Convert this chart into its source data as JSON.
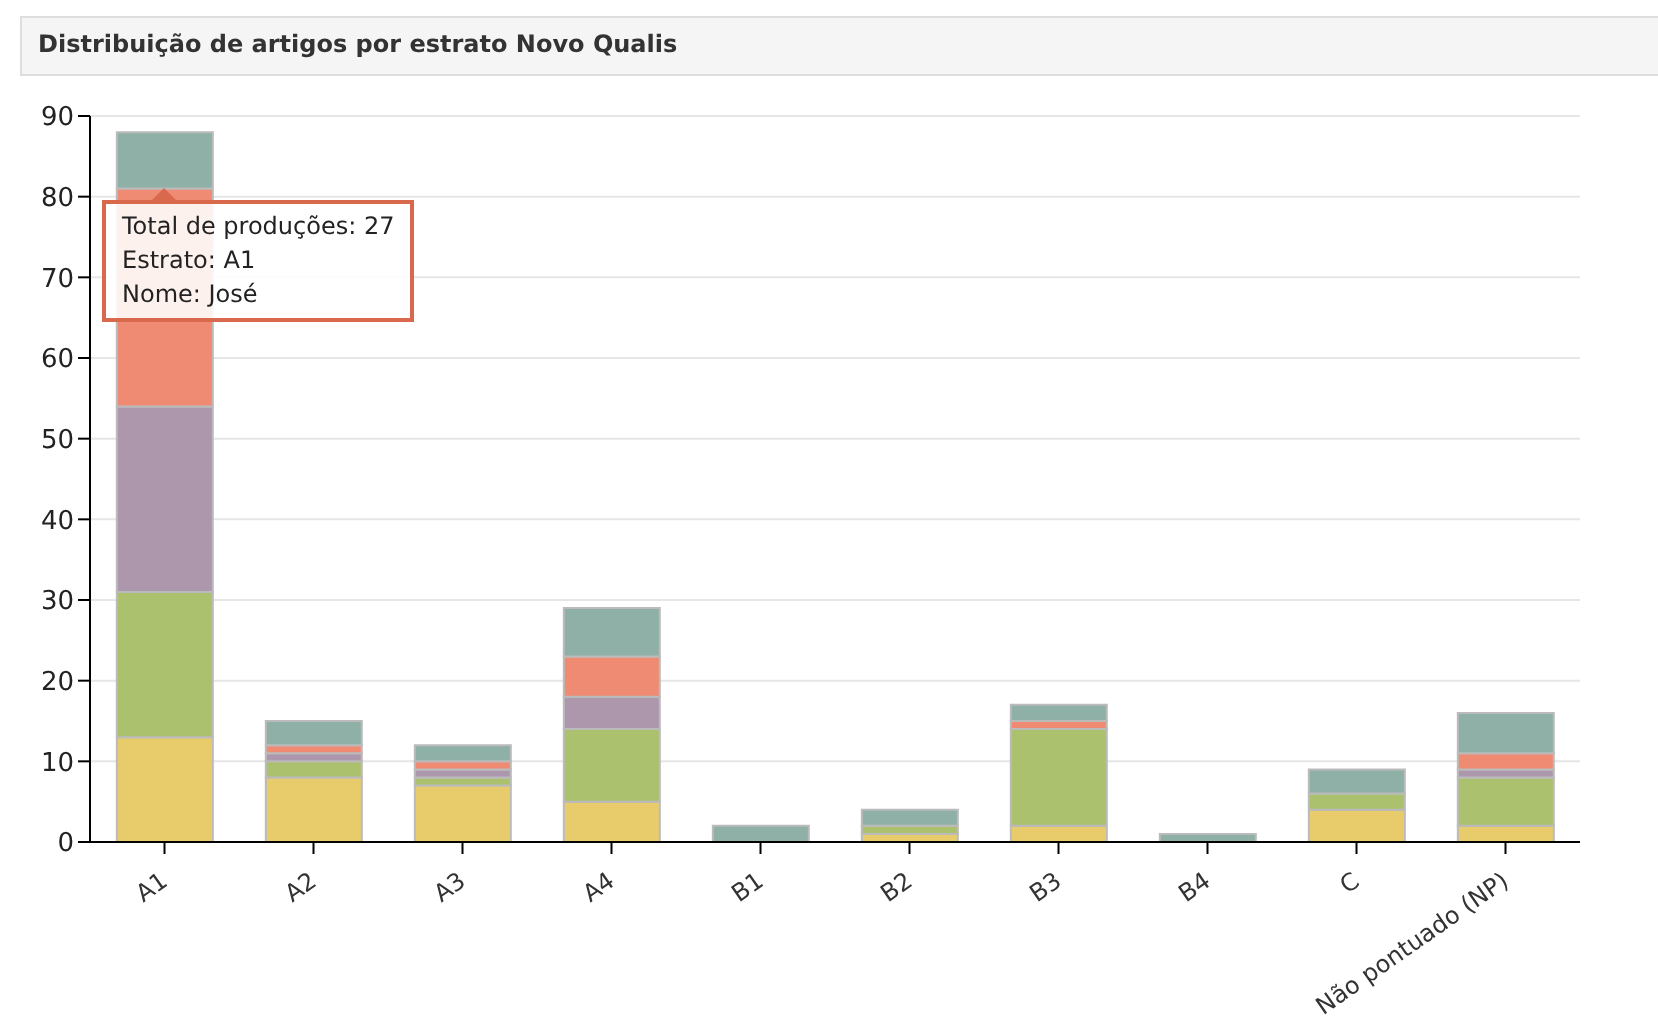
{
  "chart_data": {
    "type": "bar",
    "title": "Distribuição de artigos por estrato Novo Qualis",
    "categories": [
      "A1",
      "A2",
      "A3",
      "A4",
      "B1",
      "B2",
      "B3",
      "B4",
      "C",
      "Não pontuado (NP)"
    ],
    "stacked": true,
    "series": [
      {
        "color": "#e8cc6b",
        "values": [
          13,
          8,
          7,
          5,
          0,
          1,
          2,
          0,
          4,
          2
        ]
      },
      {
        "color": "#abc16e",
        "values": [
          18,
          2,
          1,
          9,
          0,
          1,
          12,
          0,
          2,
          6
        ]
      },
      {
        "color": "#ad97ad",
        "values": [
          23,
          1,
          1,
          4,
          0,
          0,
          0,
          0,
          0,
          1
        ]
      },
      {
        "color": "#ef8b72",
        "values": [
          27,
          1,
          1,
          5,
          0,
          0,
          1,
          0,
          0,
          2
        ]
      },
      {
        "color": "#8fb0a6",
        "values": [
          7,
          3,
          2,
          6,
          2,
          2,
          2,
          1,
          3,
          5
        ]
      }
    ],
    "ylim": [
      0,
      90
    ],
    "yticks": [
      0,
      10,
      20,
      30,
      40,
      50,
      60,
      70,
      80,
      90
    ],
    "grid": "y",
    "legend": false,
    "annotations": [
      {
        "text": "Total de produções: 27\nEstrato: A1\nNome: José",
        "x": "A1",
        "y": 81
      }
    ]
  }
}
